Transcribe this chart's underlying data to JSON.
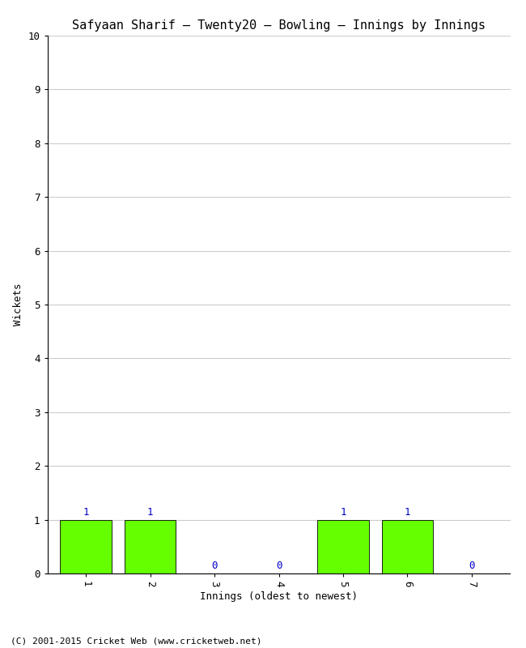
{
  "title": "Safyaan Sharif — Twenty20 — Bowling — Innings by Innings",
  "xlabel": "Innings (oldest to newest)",
  "ylabel": "Wickets",
  "innings": [
    1,
    2,
    3,
    4,
    5,
    6,
    7
  ],
  "wickets": [
    1,
    1,
    0,
    0,
    1,
    1,
    0
  ],
  "bar_color": "#66ff00",
  "bar_edge_color": "#000000",
  "label_color": "#0000cc",
  "ylim": [
    0,
    10
  ],
  "yticks": [
    0,
    1,
    2,
    3,
    4,
    5,
    6,
    7,
    8,
    9,
    10
  ],
  "background_color": "#ffffff",
  "footer": "(C) 2001-2015 Cricket Web (www.cricketweb.net)",
  "title_fontsize": 11,
  "label_fontsize": 9,
  "tick_fontsize": 9,
  "footer_fontsize": 8,
  "bar_label_fontsize": 9
}
